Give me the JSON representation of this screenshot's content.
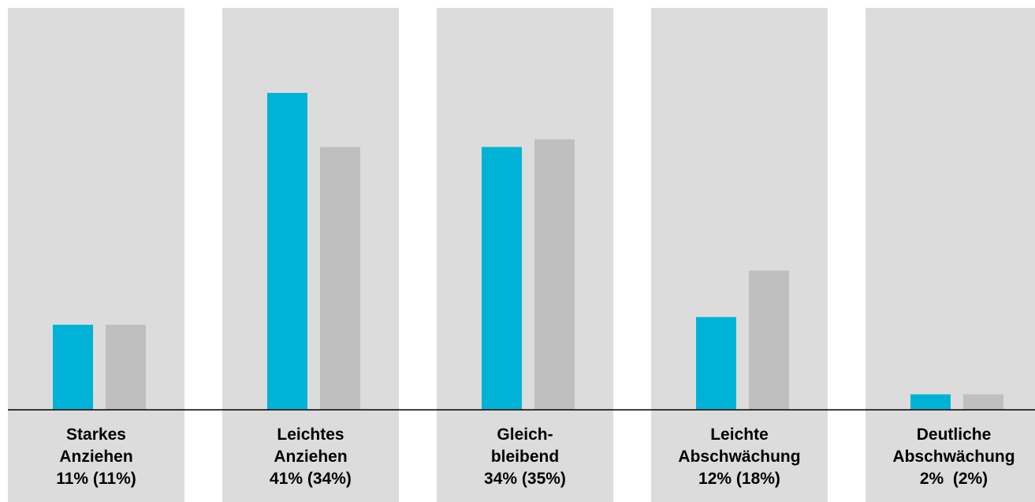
{
  "chart_data": {
    "type": "bar",
    "categories": [
      {
        "lines": [
          "Starkes",
          "Anziehen",
          "11% (11%)"
        ]
      },
      {
        "lines": [
          "Leichtes",
          "Anziehen",
          "41% (34%)"
        ]
      },
      {
        "lines": [
          "Gleich-",
          "bleibend",
          "34% (35%)"
        ]
      },
      {
        "lines": [
          "Leichte",
          "Abschwächung",
          "12% (18%)"
        ]
      },
      {
        "lines": [
          "Deutliche",
          "Abschwächung",
          "2%  (2%)"
        ]
      }
    ],
    "series": [
      {
        "values": [
          11,
          41,
          34,
          12,
          2
        ]
      },
      {
        "values": [
          11,
          34,
          35,
          18,
          2
        ]
      }
    ],
    "ylim": [
      0,
      52
    ],
    "grid": false,
    "legend": "none"
  },
  "colors": {
    "current": "#00b3d6",
    "previous": "#bfbfbf",
    "panel": "#dcdcdc",
    "baseline": "#000000"
  }
}
